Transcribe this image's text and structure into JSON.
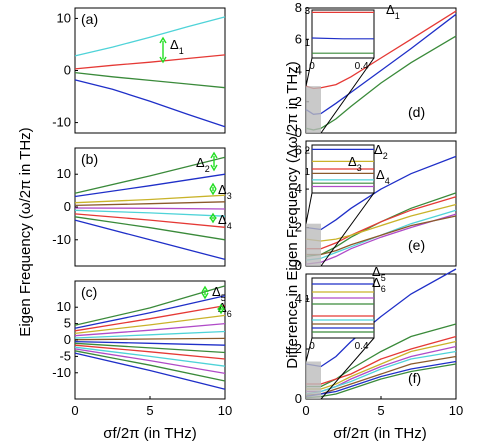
{
  "figure": {
    "left_ylabel": "Eigen Frequency (ω/2π in THz)",
    "right_ylabel": "Difference in Eigen Frequency (Δω/2π in THz)",
    "left_xlabel": "σf/2π (in THz)",
    "right_xlabel": "σf/2π (in THz)"
  },
  "chart_data": [
    {
      "panel": "(a)",
      "type": "line",
      "xlim": [
        0,
        10
      ],
      "ylim": [
        -12,
        12
      ],
      "yticks": [
        "10",
        "0",
        "-10"
      ],
      "xticks": [],
      "annotations": [
        "Δ1"
      ],
      "series": [
        {
          "color": "#4fd3d8",
          "x": [
            0,
            2.5,
            5,
            7.5,
            10
          ],
          "y": [
            2.8,
            4.5,
            6.4,
            8.4,
            10.3
          ]
        },
        {
          "color": "#e53935",
          "x": [
            0,
            2.5,
            5,
            7.5,
            10
          ],
          "y": [
            0.3,
            1.0,
            1.6,
            2.3,
            3.0
          ]
        },
        {
          "color": "#3a8a3a",
          "x": [
            0,
            2.5,
            5,
            7.5,
            10
          ],
          "y": [
            -0.4,
            -1.2,
            -1.9,
            -2.6,
            -3.3
          ]
        },
        {
          "color": "#1f2fc8",
          "x": [
            0,
            2.5,
            5,
            7.5,
            10
          ],
          "y": [
            -1.8,
            -3.6,
            -5.9,
            -8.4,
            -10.8
          ]
        }
      ]
    },
    {
      "panel": "(b)",
      "type": "line",
      "xlim": [
        0,
        10
      ],
      "ylim": [
        -18,
        18
      ],
      "yticks": [
        "10",
        "0",
        "-10"
      ],
      "xticks": [],
      "annotations": [
        "Δ2",
        "Δ3",
        "Δ4"
      ],
      "series": [
        {
          "color": "#3a8a3a",
          "x": [
            0,
            5,
            10
          ],
          "y": [
            4.2,
            9.5,
            15.2
          ]
        },
        {
          "color": "#1f2fc8",
          "x": [
            0,
            5,
            10
          ],
          "y": [
            3.2,
            6.5,
            10.0
          ]
        },
        {
          "color": "#c9b32a",
          "x": [
            0,
            5,
            10
          ],
          "y": [
            1.3,
            2.3,
            3.6
          ]
        },
        {
          "color": "#8b5a2b",
          "x": [
            0,
            5,
            10
          ],
          "y": [
            0.5,
            1.0,
            1.6
          ]
        },
        {
          "color": "#b04bc8",
          "x": [
            0,
            5,
            10
          ],
          "y": [
            -0.3,
            -0.4,
            -0.6
          ]
        },
        {
          "color": "#4fd3d8",
          "x": [
            0,
            5,
            10
          ],
          "y": [
            -1.0,
            -1.8,
            -2.8
          ]
        },
        {
          "color": "#e53935",
          "x": [
            0,
            5,
            10
          ],
          "y": [
            -2.1,
            -4.0,
            -6.2
          ]
        },
        {
          "color": "#3a8a3a",
          "x": [
            0,
            5,
            10
          ],
          "y": [
            -3.0,
            -6.3,
            -10.0
          ]
        },
        {
          "color": "#1f2fc8",
          "x": [
            0,
            5,
            10
          ],
          "y": [
            -4.0,
            -10.0,
            -16.0
          ]
        }
      ]
    },
    {
      "panel": "(c)",
      "type": "line",
      "xlim": [
        0,
        10
      ],
      "ylim": [
        -18,
        18
      ],
      "yticks": [
        "10",
        "5",
        "0",
        "-5",
        "-10"
      ],
      "xticks": [
        "0",
        "5",
        "10"
      ],
      "annotations": [
        "Δ5",
        "Δ6"
      ],
      "series": [
        {
          "color": "#3a8a3a",
          "x": [
            0,
            5,
            10
          ],
          "y": [
            4.5,
            9.8,
            16.5
          ]
        },
        {
          "color": "#1f2fc8",
          "x": [
            0,
            5,
            10
          ],
          "y": [
            3.6,
            8.3,
            13.5
          ]
        },
        {
          "color": "#e53935",
          "x": [
            0,
            5,
            10
          ],
          "y": [
            2.8,
            6.5,
            10.5
          ]
        },
        {
          "color": "#c9b32a",
          "x": [
            0,
            5,
            10
          ],
          "y": [
            2.0,
            4.6,
            7.5
          ]
        },
        {
          "color": "#b04bc8",
          "x": [
            0,
            5,
            10
          ],
          "y": [
            1.3,
            3.0,
            5.0
          ]
        },
        {
          "color": "#4fd3d8",
          "x": [
            0,
            5,
            10
          ],
          "y": [
            0.6,
            1.6,
            2.6
          ]
        },
        {
          "color": "#8b5a2b",
          "x": [
            0,
            5,
            10
          ],
          "y": [
            0.1,
            0.3,
            0.5
          ]
        },
        {
          "color": "#1f2fc8",
          "x": [
            0,
            5,
            10
          ],
          "y": [
            -0.5,
            -1.0,
            -1.6
          ]
        },
        {
          "color": "#3a8a3a",
          "x": [
            0,
            5,
            10
          ],
          "y": [
            -1.0,
            -2.4,
            -3.8
          ]
        },
        {
          "color": "#e53935",
          "x": [
            0,
            5,
            10
          ],
          "y": [
            -1.6,
            -3.6,
            -5.8
          ]
        },
        {
          "color": "#4fd3d8",
          "x": [
            0,
            5,
            10
          ],
          "y": [
            -2.2,
            -5.0,
            -8.0
          ]
        },
        {
          "color": "#b04bc8",
          "x": [
            0,
            5,
            10
          ],
          "y": [
            -2.7,
            -6.3,
            -10.2
          ]
        },
        {
          "color": "#3a8a3a",
          "x": [
            0,
            5,
            10
          ],
          "y": [
            -3.3,
            -7.7,
            -12.5
          ]
        },
        {
          "color": "#1f2fc8",
          "x": [
            0,
            5,
            10
          ],
          "y": [
            -4.0,
            -9.3,
            -15.0
          ]
        }
      ]
    },
    {
      "panel": "(d)",
      "type": "line",
      "xlim": [
        0,
        10
      ],
      "ylim": [
        0,
        8
      ],
      "yticks": [
        "8",
        "6",
        "4",
        "2",
        "0"
      ],
      "xticks": [],
      "annotations": [
        "Δ1"
      ],
      "series": [
        {
          "color": "#e53935",
          "x": [
            0,
            0.5,
            1,
            2,
            3,
            5,
            7,
            10
          ],
          "y": [
            3.0,
            2.85,
            2.9,
            3.1,
            3.6,
            4.8,
            6.0,
            7.8
          ]
        },
        {
          "color": "#1f2fc8",
          "x": [
            0,
            0.5,
            1,
            2,
            3,
            5,
            7,
            10
          ],
          "y": [
            1.5,
            1.2,
            1.25,
            1.9,
            2.6,
            4.0,
            5.4,
            7.6
          ]
        },
        {
          "color": "#3a8a3a",
          "x": [
            0,
            0.5,
            1,
            2,
            3,
            5,
            7,
            10
          ],
          "y": [
            0.3,
            0.2,
            0.3,
            0.9,
            1.7,
            3.2,
            4.5,
            6.2
          ]
        }
      ],
      "inset": {
        "xlim": [
          0,
          0.5
        ],
        "ylim": [
          0,
          3
        ],
        "xticks": [
          "0",
          "0.4"
        ],
        "yticks": [
          "3",
          "1"
        ],
        "series": [
          {
            "color": "#e53935",
            "x": [
              0,
              0.25,
              0.5
            ],
            "y": [
              2.85,
              2.85,
              2.85
            ]
          },
          {
            "color": "#1f2fc8",
            "x": [
              0,
              0.25,
              0.5
            ],
            "y": [
              1.25,
              1.2,
              1.2
            ]
          },
          {
            "color": "#3a8a3a",
            "x": [
              0,
              0.25,
              0.5
            ],
            "y": [
              0.3,
              0.3,
              0.3
            ]
          }
        ]
      }
    },
    {
      "panel": "(e)",
      "type": "line",
      "xlim": [
        0,
        10
      ],
      "ylim": [
        0,
        6.5
      ],
      "yticks": [
        "6",
        "4",
        "2",
        "0"
      ],
      "xticks": [],
      "annotations": [
        "Δ2",
        "Δ3",
        "Δ4"
      ],
      "series": [
        {
          "color": "#1f2fc8",
          "x": [
            0,
            1,
            2,
            3,
            5,
            7,
            10
          ],
          "y": [
            2.0,
            1.9,
            2.4,
            3.0,
            4.0,
            4.8,
            5.7
          ]
        },
        {
          "color": "#3a8a3a",
          "x": [
            0,
            1,
            2,
            3,
            5,
            7,
            10
          ],
          "y": [
            0.5,
            0.6,
            1.0,
            1.5,
            2.3,
            3.0,
            3.8
          ]
        },
        {
          "color": "#e53935",
          "x": [
            0,
            1,
            2,
            3,
            5,
            7,
            10
          ],
          "y": [
            0.9,
            0.9,
            1.2,
            1.6,
            2.3,
            2.9,
            3.6
          ]
        },
        {
          "color": "#c9b32a",
          "x": [
            0,
            1,
            2,
            3,
            5,
            7,
            10
          ],
          "y": [
            1.4,
            1.3,
            1.4,
            1.6,
            2.1,
            2.6,
            3.2
          ]
        },
        {
          "color": "#4fd3d8",
          "x": [
            0,
            1,
            2,
            3,
            5,
            7,
            10
          ],
          "y": [
            0.3,
            0.4,
            0.7,
            1.0,
            1.6,
            2.2,
            2.9
          ]
        },
        {
          "color": "#b04bc8",
          "x": [
            0,
            1,
            2,
            3,
            5,
            7,
            10
          ],
          "y": [
            0.1,
            0.2,
            0.5,
            0.9,
            1.5,
            2.0,
            2.7
          ]
        },
        {
          "color": "#8b5a2b",
          "x": [
            0,
            1,
            2,
            3,
            5,
            7,
            10
          ],
          "y": [
            0.6,
            0.6,
            0.8,
            1.1,
            1.6,
            2.1,
            2.6
          ]
        }
      ],
      "inset": {
        "xlim": [
          0,
          0.5
        ],
        "ylim": [
          0,
          2.2
        ],
        "xticks": [],
        "yticks": [
          "2",
          "1"
        ],
        "series": [
          {
            "color": "#1f2fc8",
            "x": [
              0,
              0.25,
              0.5
            ],
            "y": [
              2.0,
              2.0,
              2.0
            ]
          },
          {
            "color": "#c9b32a",
            "x": [
              0,
              0.25,
              0.5
            ],
            "y": [
              1.45,
              1.45,
              1.45
            ]
          },
          {
            "color": "#e53935",
            "x": [
              0,
              0.25,
              0.5
            ],
            "y": [
              1.1,
              1.1,
              1.1
            ]
          },
          {
            "color": "#8b5a2b",
            "x": [
              0,
              0.25,
              0.5
            ],
            "y": [
              0.9,
              0.9,
              0.9
            ]
          },
          {
            "color": "#4fd3d8",
            "x": [
              0,
              0.25,
              0.5
            ],
            "y": [
              0.6,
              0.6,
              0.6
            ]
          },
          {
            "color": "#3a8a3a",
            "x": [
              0,
              0.25,
              0.5
            ],
            "y": [
              0.45,
              0.45,
              0.45
            ]
          },
          {
            "color": "#b04bc8",
            "x": [
              0,
              0.25,
              0.5
            ],
            "y": [
              0.3,
              0.3,
              0.3
            ]
          }
        ]
      }
    },
    {
      "panel": "(f)",
      "type": "line",
      "xlim": [
        0,
        10
      ],
      "ylim": [
        0,
        5
      ],
      "yticks": [
        "4",
        "2",
        "0"
      ],
      "xticks": [
        "0",
        "5",
        "10"
      ],
      "annotations": [
        "Δ5",
        "Δ6"
      ],
      "series": [
        {
          "color": "#1f2fc8",
          "x": [
            0,
            1,
            2,
            3,
            5,
            7,
            10
          ],
          "y": [
            1.4,
            1.3,
            1.7,
            2.3,
            3.3,
            4.2,
            5.2
          ]
        },
        {
          "color": "#3a8a3a",
          "x": [
            0,
            1,
            2,
            3,
            5,
            7,
            10
          ],
          "y": [
            0.5,
            0.5,
            0.8,
            1.2,
            1.9,
            2.5,
            3.0
          ]
        },
        {
          "color": "#e53935",
          "x": [
            0,
            1,
            2,
            3,
            5,
            7,
            10
          ],
          "y": [
            0.6,
            0.6,
            0.8,
            1.0,
            1.6,
            2.0,
            2.5
          ]
        },
        {
          "color": "#c9b32a",
          "x": [
            0,
            1,
            2,
            3,
            5,
            7,
            10
          ],
          "y": [
            0.4,
            0.4,
            0.6,
            0.9,
            1.4,
            1.9,
            2.3
          ]
        },
        {
          "color": "#b04bc8",
          "x": [
            0,
            1,
            2,
            3,
            5,
            7,
            10
          ],
          "y": [
            0.3,
            0.3,
            0.5,
            0.8,
            1.3,
            1.7,
            2.1
          ]
        },
        {
          "color": "#4fd3d8",
          "x": [
            0,
            1,
            2,
            3,
            5,
            7,
            10
          ],
          "y": [
            0.2,
            0.3,
            0.5,
            0.7,
            1.2,
            1.6,
            1.9
          ]
        },
        {
          "color": "#8b5a2b",
          "x": [
            0,
            1,
            2,
            3,
            5,
            7,
            10
          ],
          "y": [
            0.15,
            0.2,
            0.4,
            0.6,
            1.0,
            1.4,
            1.7
          ]
        },
        {
          "color": "#1f2fc8",
          "x": [
            0,
            1,
            2,
            3,
            5,
            7,
            10
          ],
          "y": [
            0.1,
            0.2,
            0.3,
            0.5,
            0.9,
            1.2,
            1.5
          ]
        },
        {
          "color": "#3a8a3a",
          "x": [
            0,
            1,
            2,
            3,
            5,
            7,
            10
          ],
          "y": [
            0.05,
            0.1,
            0.2,
            0.4,
            0.8,
            1.1,
            1.4
          ]
        }
      ],
      "inset": {
        "xlim": [
          0,
          0.5
        ],
        "ylim": [
          0,
          1.5
        ],
        "xticks": [
          "0",
          "0.4"
        ],
        "yticks": [
          "1"
        ],
        "series": [
          {
            "color": "#1f2fc8",
            "x": [
              0,
              0.25,
              0.5
            ],
            "y": [
              1.35,
              1.35,
              1.35
            ]
          },
          {
            "color": "#c9b32a",
            "x": [
              0,
              0.25,
              0.5
            ],
            "y": [
              1.15,
              1.15,
              1.15
            ]
          },
          {
            "color": "#b04bc8",
            "x": [
              0,
              0.25,
              0.5
            ],
            "y": [
              1.0,
              1.0,
              1.0
            ]
          },
          {
            "color": "#3a8a3a",
            "x": [
              0,
              0.25,
              0.5
            ],
            "y": [
              0.85,
              0.85,
              0.85
            ]
          },
          {
            "color": "#e53935",
            "x": [
              0,
              0.25,
              0.5
            ],
            "y": [
              0.55,
              0.55,
              0.55
            ]
          },
          {
            "color": "#4fd3d8",
            "x": [
              0,
              0.25,
              0.5
            ],
            "y": [
              0.45,
              0.45,
              0.45
            ]
          },
          {
            "color": "#8b5a2b",
            "x": [
              0,
              0.25,
              0.5
            ],
            "y": [
              0.35,
              0.35,
              0.35
            ]
          },
          {
            "color": "#1f2fc8",
            "x": [
              0,
              0.25,
              0.5
            ],
            "y": [
              0.25,
              0.25,
              0.25
            ]
          },
          {
            "color": "#3a8a3a",
            "x": [
              0,
              0.25,
              0.5
            ],
            "y": [
              0.15,
              0.15,
              0.15
            ]
          }
        ]
      }
    }
  ]
}
